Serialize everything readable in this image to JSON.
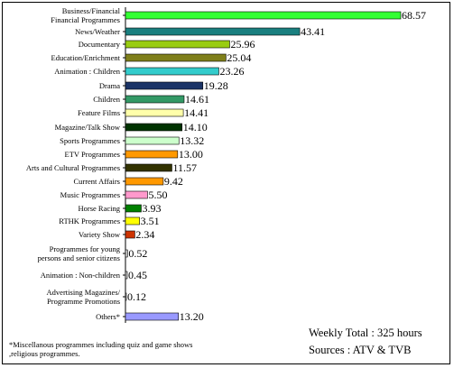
{
  "chart_data": {
    "type": "bar",
    "orientation": "horizontal",
    "categories": [
      "Business/Financial\nFinancial Programmes",
      "News/Weather",
      "Documentary",
      "Education/Enrichment",
      "Animation : Children",
      "Drama",
      "Children",
      "Feature Films",
      "Magazine/Talk Show",
      "Sports Programmes",
      "ETV Programmes",
      "Arts and Cultural Programmes",
      "Current Affairs",
      "Music Programmes",
      "Horse Racing",
      "RTHK Programmes",
      "Variety Show",
      "Programmes for young\npersons and senior citizens",
      "Animation : Non-children",
      "Advertising Magazines/\nProgramme Promotions",
      "Others*"
    ],
    "values": [
      68.57,
      43.41,
      25.96,
      25.04,
      23.26,
      19.28,
      14.61,
      14.41,
      14.1,
      13.32,
      13.0,
      11.57,
      9.42,
      5.5,
      3.93,
      3.51,
      2.34,
      0.52,
      0.45,
      0.12,
      13.2
    ],
    "value_labels": [
      "68.57",
      "43.41",
      "25.96",
      "25.04",
      "23.26",
      "19.28",
      "14.61",
      "14.41",
      "14.10",
      "13.32",
      "13.00",
      "11.57",
      "9.42",
      "5.50",
      "3.93",
      "3.51",
      "2.34",
      "0.52",
      "0.45",
      "0.12",
      "13.20"
    ],
    "colors": [
      "#33ff33",
      "#1a7f7f",
      "#99cc11",
      "#7f7f1a",
      "#33cccc",
      "#1a3366",
      "#339966",
      "#ffffaa",
      "#003300",
      "#ccffcc",
      "#ff9900",
      "#333300",
      "#ff9900",
      "#ff99cc",
      "#008000",
      "#ffff00",
      "#cc3300",
      "#cccccc",
      "#cccccc",
      "#cccccc",
      "#9999ff"
    ],
    "xlim": [
      0,
      70
    ],
    "grid": false,
    "legend": "none"
  },
  "footnote": "*Miscellanous programmes including quiz and game shows ,religious programmes.",
  "total_text": "Weekly Total : 325 hours",
  "sources_text": "Sources : ATV & TVB"
}
